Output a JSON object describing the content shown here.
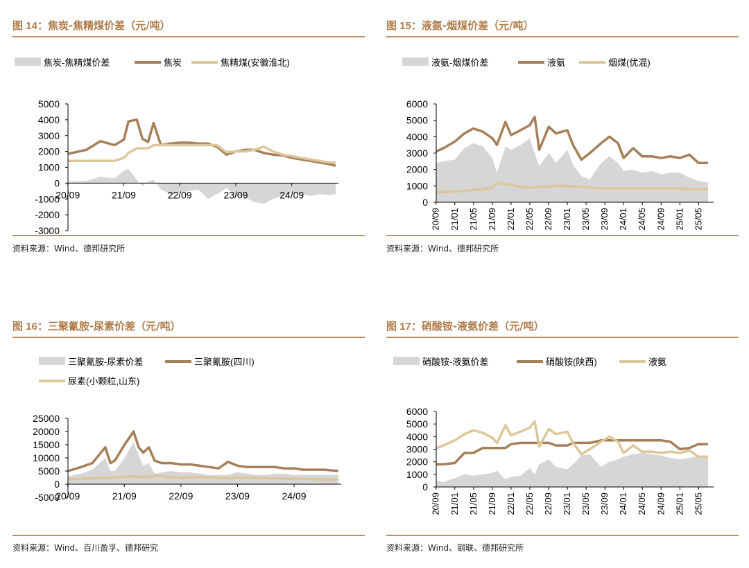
{
  "panels": [
    {
      "title_fig": "图 14",
      "title_text": "焦炭-焦精煤价差（元/吨）",
      "source": "资料来源：Wind、德邦研究所"
    },
    {
      "title_fig": "图 15",
      "title_text": "液氨-烟煤价差（元/吨）",
      "source": "资料来源：Wind、德邦研究所"
    },
    {
      "title_fig": "图 16",
      "title_text": "三聚氰胺-尿素价差（元/吨）",
      "source": "资料来源：Wind、百川盈孚、德邦研究"
    },
    {
      "title_fig": "图 17",
      "title_text": "硝酸铵-液氨价差（元/吨）",
      "source": "资料来源：Wind、钢联、德邦研究所"
    }
  ],
  "colors": {
    "spread": "#d6d6d6",
    "product": "#a57f57",
    "feedstock": "#dcc79a",
    "accent": "#b07c4b"
  },
  "chart_data": [
    {
      "type": "line",
      "legend_position": "top",
      "grid": false,
      "ylim": [
        -3000,
        5000
      ],
      "yticks": [
        -3000,
        -2000,
        -1000,
        0,
        1000,
        2000,
        3000,
        4000,
        5000
      ],
      "xticks": [
        "20/09",
        "21/09",
        "22/09",
        "23/09",
        "24/09"
      ],
      "x": [
        2020.67,
        2021.0,
        2021.25,
        2021.5,
        2021.67,
        2021.75,
        2021.9,
        2022.0,
        2022.1,
        2022.2,
        2022.33,
        2022.5,
        2022.67,
        2022.83,
        2023.0,
        2023.17,
        2023.33,
        2023.5,
        2023.67,
        2023.83,
        2024.0,
        2024.17,
        2024.33,
        2024.5,
        2024.67,
        2024.83,
        2025.0,
        2025.17,
        2025.33,
        2025.45
      ],
      "series": [
        {
          "name": "焦炭-焦精煤价差",
          "kind": "area",
          "values": [
            100,
            150,
            400,
            300,
            800,
            900,
            200,
            -200,
            100,
            200,
            -400,
            -700,
            -600,
            -500,
            -400,
            -1000,
            -700,
            -300,
            -800,
            -900,
            -1200,
            -1300,
            -1000,
            -800,
            -600,
            -700,
            -800,
            -700,
            -750,
            -700
          ]
        },
        {
          "name": "焦炭",
          "kind": "line",
          "values": [
            1850,
            2100,
            2650,
            2400,
            2750,
            3900,
            4000,
            2800,
            2600,
            3800,
            2400,
            2500,
            2550,
            2550,
            2500,
            2500,
            2300,
            1800,
            2000,
            2100,
            2100,
            1900,
            1800,
            1750,
            1600,
            1500,
            1400,
            1300,
            1200,
            1100
          ]
        },
        {
          "name": "焦精煤(安徽淮北)",
          "kind": "line",
          "values": [
            1400,
            1400,
            1400,
            1400,
            1600,
            1900,
            2200,
            2200,
            2200,
            2400,
            2400,
            2400,
            2400,
            2400,
            2400,
            2400,
            2400,
            1950,
            2000,
            2000,
            2100,
            2300,
            2000,
            1800,
            1700,
            1600,
            1500,
            1400,
            1300,
            1300
          ]
        }
      ]
    },
    {
      "type": "line",
      "legend_position": "top",
      "grid": false,
      "ylim": [
        0,
        6000
      ],
      "yticks": [
        0,
        1000,
        2000,
        3000,
        4000,
        5000,
        6000
      ],
      "xticks": [
        "20/09",
        "21/01",
        "21/05",
        "21/09",
        "22/01",
        "22/05",
        "22/09",
        "23/01",
        "23/05",
        "23/09",
        "24/01",
        "24/05",
        "24/09",
        "25/01",
        "25/05"
      ],
      "x": [
        2020.67,
        2020.8,
        2021.0,
        2021.17,
        2021.33,
        2021.5,
        2021.67,
        2021.75,
        2021.9,
        2022.0,
        2022.17,
        2022.33,
        2022.42,
        2022.5,
        2022.67,
        2022.8,
        2023.0,
        2023.1,
        2023.25,
        2023.4,
        2023.6,
        2023.75,
        2023.9,
        2024.0,
        2024.17,
        2024.33,
        2024.5,
        2024.67,
        2024.83,
        2025.0,
        2025.17,
        2025.33,
        2025.5
      ],
      "series": [
        {
          "name": "液氨-烟煤价差",
          "kind": "area",
          "values": [
            2400,
            2500,
            2600,
            3300,
            3600,
            3400,
            2700,
            1800,
            3400,
            3200,
            3500,
            3900,
            3000,
            2200,
            3000,
            2400,
            3200,
            2300,
            1600,
            1400,
            2400,
            2800,
            2400,
            1900,
            2000,
            1800,
            1900,
            1700,
            1800,
            1800,
            1500,
            1300,
            1200
          ]
        },
        {
          "name": "液氨",
          "kind": "line",
          "values": [
            3100,
            3300,
            3700,
            4200,
            4500,
            4300,
            3900,
            3500,
            4900,
            4100,
            4400,
            4700,
            5200,
            3200,
            4600,
            4200,
            4400,
            3500,
            2600,
            3000,
            3600,
            4000,
            3600,
            2700,
            3300,
            2800,
            2800,
            2700,
            2800,
            2700,
            2900,
            2400,
            2400
          ]
        },
        {
          "name": "烟煤(优混)",
          "kind": "line",
          "values": [
            600,
            620,
            650,
            700,
            750,
            800,
            900,
            1200,
            1100,
            1050,
            950,
            900,
            900,
            950,
            950,
            1000,
            1000,
            950,
            950,
            900,
            850,
            850,
            850,
            850,
            850,
            850,
            850,
            850,
            850,
            850,
            800,
            800,
            800
          ]
        }
      ]
    },
    {
      "type": "line",
      "legend_position": "top",
      "grid": false,
      "ylim": [
        -5000,
        25000
      ],
      "yticks": [
        -5000,
        0,
        5000,
        10000,
        15000,
        20000,
        25000
      ],
      "xticks": [
        "20/09",
        "21/09",
        "22/09",
        "23/09",
        "24/09"
      ],
      "x": [
        2020.67,
        2020.9,
        2021.1,
        2021.33,
        2021.42,
        2021.5,
        2021.67,
        2021.83,
        2021.92,
        2022.0,
        2022.1,
        2022.2,
        2022.33,
        2022.5,
        2022.67,
        2022.83,
        2023.0,
        2023.17,
        2023.33,
        2023.5,
        2023.67,
        2023.83,
        2024.0,
        2024.17,
        2024.33,
        2024.5,
        2024.67,
        2024.83,
        2025.0,
        2025.2,
        2025.45
      ],
      "series": [
        {
          "name": "三聚氰胺-尿素价差",
          "kind": "area",
          "values": [
            3000,
            4000,
            5500,
            10000,
            5000,
            5000,
            10000,
            16000,
            11000,
            7000,
            8000,
            4000,
            4500,
            5000,
            4500,
            4500,
            4000,
            3500,
            3500,
            3500,
            4500,
            4000,
            3500,
            3500,
            4000,
            4000,
            3500,
            3500,
            3500,
            3500,
            3500
          ]
        },
        {
          "name": "三聚氰胺(四川)",
          "kind": "line",
          "values": [
            5000,
            6500,
            8000,
            14000,
            8000,
            9000,
            15000,
            20000,
            14000,
            12000,
            14000,
            9000,
            8000,
            8000,
            7500,
            7500,
            7000,
            6500,
            6000,
            8500,
            7000,
            6500,
            6500,
            6500,
            6500,
            6000,
            6000,
            5500,
            5500,
            5500,
            5000
          ]
        },
        {
          "name": "尿素(小颗粒,山东)",
          "kind": "line",
          "values": [
            1800,
            2000,
            2200,
            2400,
            2500,
            2600,
            2800,
            3000,
            2800,
            2600,
            2800,
            3200,
            3000,
            2700,
            2500,
            2600,
            2800,
            2600,
            2400,
            2300,
            2600,
            2500,
            2400,
            2300,
            2200,
            2100,
            2000,
            2000,
            1900,
            1800,
            1800
          ]
        }
      ]
    },
    {
      "type": "line",
      "legend_position": "top",
      "grid": false,
      "ylim": [
        0,
        6000
      ],
      "yticks": [
        0,
        1000,
        2000,
        3000,
        4000,
        5000,
        6000
      ],
      "xticks": [
        "20/09",
        "21/01",
        "21/05",
        "21/09",
        "22/01",
        "22/05",
        "22/09",
        "23/01",
        "23/05",
        "23/09",
        "24/01",
        "24/05",
        "24/09",
        "25/01",
        "25/05"
      ],
      "x": [
        2020.67,
        2020.8,
        2021.0,
        2021.17,
        2021.33,
        2021.5,
        2021.67,
        2021.75,
        2021.9,
        2022.0,
        2022.17,
        2022.33,
        2022.42,
        2022.5,
        2022.67,
        2022.8,
        2023.0,
        2023.1,
        2023.25,
        2023.4,
        2023.6,
        2023.75,
        2023.9,
        2024.0,
        2024.17,
        2024.33,
        2024.5,
        2024.67,
        2024.83,
        2025.0,
        2025.17,
        2025.33,
        2025.5
      ],
      "series": [
        {
          "name": "硝酸铵-液氨价差",
          "kind": "area",
          "values": [
            500,
            400,
            700,
            1000,
            900,
            1000,
            1100,
            1300,
            600,
            800,
            900,
            1500,
            1000,
            1800,
            2200,
            1600,
            1400,
            1800,
            2500,
            2600,
            1600,
            2000,
            2200,
            2400,
            2600,
            2700,
            2600,
            2500,
            2300,
            2200,
            2300,
            2500,
            2500
          ]
        },
        {
          "name": "硝酸铵(陕西)",
          "kind": "line",
          "values": [
            1800,
            1800,
            1900,
            2700,
            2700,
            3100,
            3100,
            3100,
            3100,
            3400,
            3500,
            3500,
            3500,
            3500,
            3500,
            3300,
            3300,
            3500,
            3500,
            3500,
            3700,
            3700,
            3700,
            3700,
            3700,
            3700,
            3700,
            3700,
            3600,
            3000,
            3100,
            3400,
            3400
          ]
        },
        {
          "name": "液氨",
          "kind": "line",
          "values": [
            3100,
            3300,
            3700,
            4200,
            4500,
            4300,
            3900,
            3500,
            4900,
            4100,
            4400,
            4700,
            5200,
            3200,
            4600,
            4200,
            4400,
            3500,
            2600,
            3000,
            3600,
            4000,
            3600,
            2700,
            3300,
            2800,
            2800,
            2700,
            2800,
            2700,
            2900,
            2400,
            2400
          ]
        }
      ]
    }
  ]
}
